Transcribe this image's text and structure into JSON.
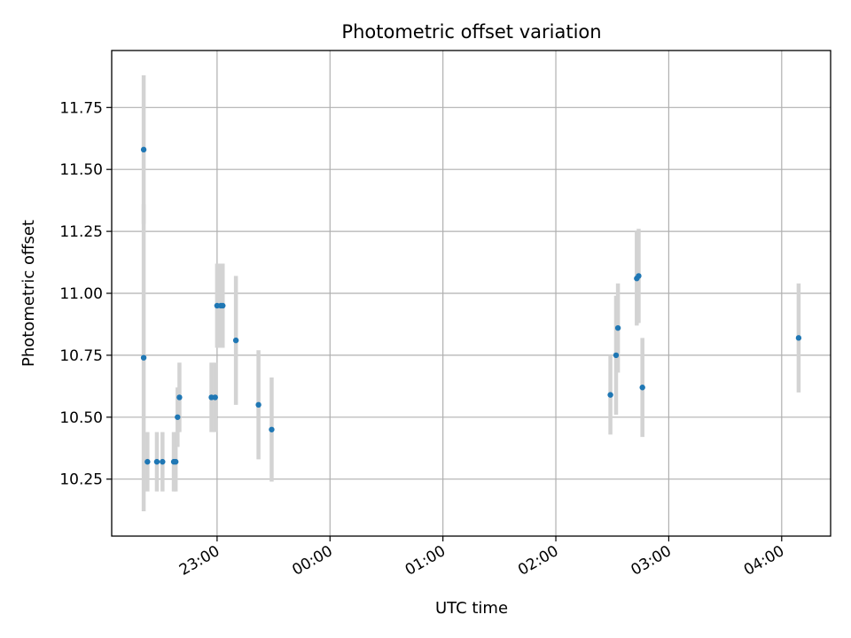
{
  "chart_data": {
    "type": "scatter",
    "title": "Photometric offset variation",
    "xlabel": "UTC time",
    "ylabel": "Photometric offset",
    "xlim": [
      "22:04",
      "04:26"
    ],
    "ylim": [
      10.02,
      11.98
    ],
    "grid": true,
    "x_ticks": [
      "23:00",
      "00:00",
      "01:00",
      "02:00",
      "03:00",
      "04:00"
    ],
    "y_ticks": [
      "10.25",
      "10.50",
      "10.75",
      "11.00",
      "11.25",
      "11.50",
      "11.75"
    ],
    "colors": {
      "point": "#1f77b4",
      "errorbar": "#d3d3d3",
      "grid": "#b0b0b0"
    },
    "series": [
      {
        "points": [
          {
            "x": "22:21",
            "y": 11.58,
            "err": 0.3
          },
          {
            "x": "22:21",
            "y": 10.74,
            "err": 0.62
          },
          {
            "x": "22:23",
            "y": 10.32,
            "err": 0.12
          },
          {
            "x": "22:28",
            "y": 10.32,
            "err": 0.12
          },
          {
            "x": "22:31",
            "y": 10.32,
            "err": 0.12
          },
          {
            "x": "22:37",
            "y": 10.32,
            "err": 0.12
          },
          {
            "x": "22:38",
            "y": 10.32,
            "err": 0.12
          },
          {
            "x": "22:39",
            "y": 10.5,
            "err": 0.12
          },
          {
            "x": "22:40",
            "y": 10.58,
            "err": 0.14
          },
          {
            "x": "22:57",
            "y": 10.58,
            "err": 0.14
          },
          {
            "x": "22:59",
            "y": 10.58,
            "err": 0.14
          },
          {
            "x": "23:00",
            "y": 10.95,
            "err": 0.17
          },
          {
            "x": "23:02",
            "y": 10.95,
            "err": 0.17
          },
          {
            "x": "23:03",
            "y": 10.95,
            "err": 0.17
          },
          {
            "x": "23:10",
            "y": 10.81,
            "err": 0.26
          },
          {
            "x": "23:22",
            "y": 10.55,
            "err": 0.22
          },
          {
            "x": "23:29",
            "y": 10.45,
            "err": 0.21
          },
          {
            "x": "02:29",
            "y": 10.59,
            "err": 0.16
          },
          {
            "x": "02:32",
            "y": 10.75,
            "err": 0.24
          },
          {
            "x": "02:33",
            "y": 10.86,
            "err": 0.18
          },
          {
            "x": "02:43",
            "y": 11.06,
            "err": 0.19
          },
          {
            "x": "02:44",
            "y": 11.07,
            "err": 0.19
          },
          {
            "x": "02:46",
            "y": 10.62,
            "err": 0.2
          },
          {
            "x": "04:09",
            "y": 10.82,
            "err": 0.22
          }
        ]
      }
    ]
  }
}
